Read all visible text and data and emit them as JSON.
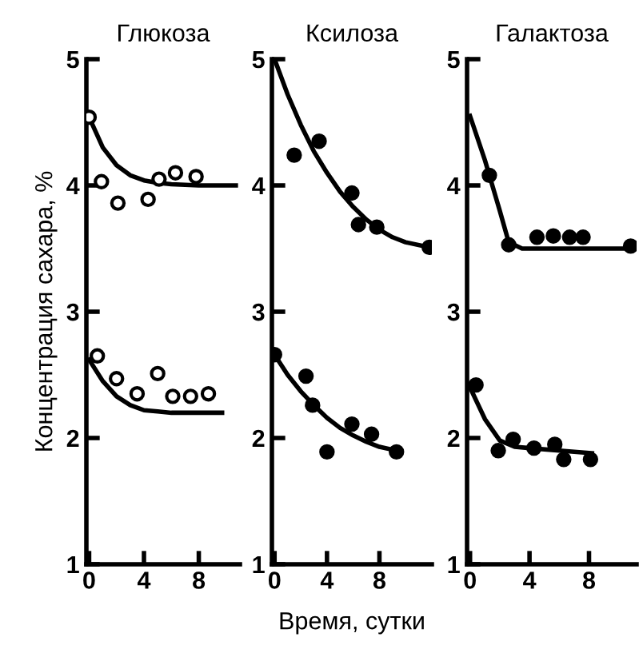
{
  "chart_data": [
    {
      "type": "scatter",
      "title": "Глюкоза",
      "ylabel": "Концентрация сахара, %",
      "xlim": [
        -0.2,
        11
      ],
      "ylim": [
        1,
        5
      ],
      "xticks": [
        0,
        4,
        8
      ],
      "yticks": [
        1,
        2,
        3,
        4,
        5
      ],
      "grid": false,
      "legend": false,
      "series": [
        {
          "color": "#ffffff",
          "marker": "circle",
          "x": [
            0,
            0.9,
            2.1,
            4.3,
            5.1,
            6.3,
            7.8
          ],
          "values": [
            4.54,
            4.03,
            3.86,
            3.89,
            4.05,
            4.1,
            4.07
          ]
        },
        {
          "type": "line",
          "color": "#000000",
          "marker": "none",
          "x": [
            0,
            1,
            2,
            3,
            4,
            5,
            6,
            8,
            10.7
          ],
          "values": [
            4.54,
            4.3,
            4.16,
            4.08,
            4.04,
            4.02,
            4.01,
            4.0,
            4.0
          ]
        },
        {
          "color": "#ffffff",
          "marker": "circle",
          "x": [
            0.6,
            2.0,
            3.5,
            5.0,
            6.1,
            7.4,
            8.7
          ],
          "values": [
            2.65,
            2.47,
            2.35,
            2.51,
            2.33,
            2.33,
            2.35
          ]
        },
        {
          "type": "line",
          "color": "#000000",
          "marker": "none",
          "x": [
            0,
            1,
            2,
            3,
            4,
            5,
            6,
            8,
            9.7
          ],
          "values": [
            2.62,
            2.45,
            2.33,
            2.26,
            2.22,
            2.21,
            2.2,
            2.2,
            2.2
          ]
        }
      ]
    },
    {
      "type": "scatter",
      "title": "Ксилоза",
      "xlabel": "Время, сутки",
      "xlim": [
        -0.2,
        12
      ],
      "ylim": [
        1,
        5
      ],
      "xticks": [
        0,
        4,
        8
      ],
      "yticks": [
        1,
        2,
        3,
        4,
        5
      ],
      "grid": false,
      "legend": false,
      "series": [
        {
          "color": "#000000",
          "marker": "circle",
          "x": [
            1.5,
            3.4,
            5.9,
            6.4,
            7.8,
            11.8
          ],
          "values": [
            4.24,
            4.35,
            3.94,
            3.69,
            3.67,
            3.51
          ]
        },
        {
          "type": "line",
          "color": "#000000",
          "marker": "none",
          "x": [
            0,
            1,
            2,
            3,
            4,
            5,
            6,
            7,
            8,
            9,
            10,
            11.8
          ],
          "values": [
            5.0,
            4.72,
            4.48,
            4.27,
            4.1,
            3.95,
            3.83,
            3.73,
            3.65,
            3.59,
            3.55,
            3.51
          ]
        },
        {
          "color": "#000000",
          "marker": "circle",
          "x": [
            0,
            2.4,
            2.9,
            4.0,
            5.9,
            7.4,
            9.3
          ],
          "values": [
            2.66,
            2.49,
            2.26,
            1.89,
            2.11,
            2.03,
            1.89
          ]
        },
        {
          "type": "line",
          "color": "#000000",
          "marker": "none",
          "x": [
            0,
            1,
            2,
            3,
            4,
            5,
            6,
            7,
            8,
            9.3
          ],
          "values": [
            2.66,
            2.5,
            2.37,
            2.26,
            2.16,
            2.08,
            2.02,
            1.97,
            1.93,
            1.9
          ]
        }
      ]
    },
    {
      "type": "scatter",
      "title": "Галактоза",
      "xlim": [
        -0.2,
        11.2
      ],
      "ylim": [
        1,
        5
      ],
      "xticks": [
        0,
        4,
        8
      ],
      "yticks": [
        1,
        2,
        3,
        4,
        5
      ],
      "grid": false,
      "legend": false,
      "series": [
        {
          "color": "#000000",
          "marker": "circle",
          "x": [
            1.3,
            2.6,
            4.5,
            5.6,
            6.7,
            7.6,
            10.8
          ],
          "values": [
            4.08,
            3.53,
            3.59,
            3.6,
            3.59,
            3.59,
            3.52
          ]
        },
        {
          "type": "line",
          "color": "#000000",
          "marker": "none",
          "x": [
            0,
            1,
            2,
            2.6,
            3.5,
            10.8
          ],
          "values": [
            4.55,
            4.2,
            3.8,
            3.55,
            3.5,
            3.5
          ]
        },
        {
          "color": "#000000",
          "marker": "circle",
          "x": [
            0.4,
            1.9,
            2.9,
            4.3,
            5.7,
            6.3,
            8.1
          ],
          "values": [
            2.42,
            1.9,
            1.99,
            1.92,
            1.95,
            1.83,
            1.83
          ]
        },
        {
          "type": "line",
          "color": "#000000",
          "marker": "none",
          "x": [
            0,
            1,
            2,
            3,
            4,
            6,
            8.2
          ],
          "values": [
            2.4,
            2.15,
            1.98,
            1.93,
            1.92,
            1.9,
            1.88
          ]
        }
      ]
    }
  ]
}
